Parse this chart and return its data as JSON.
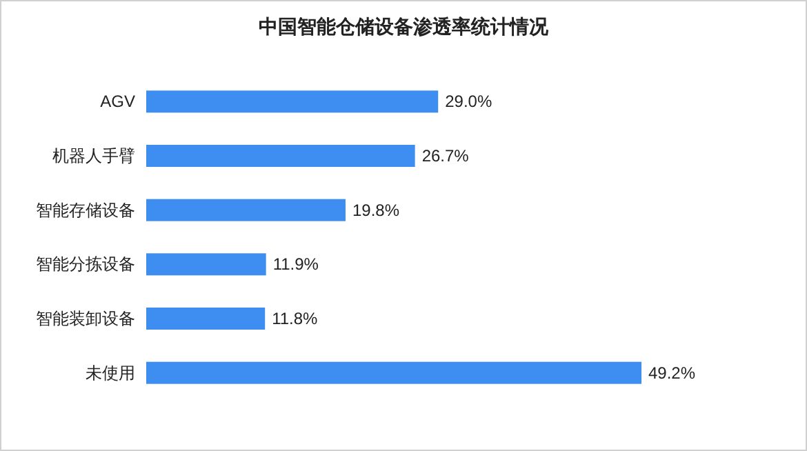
{
  "chart_data": {
    "type": "bar",
    "orientation": "horizontal",
    "title": "中国智能仓储设备渗透率统计情况",
    "categories": [
      "AGV",
      "机器人手臂",
      "智能存储设备",
      "智能分拣设备",
      "智能装卸设备",
      "未使用"
    ],
    "values": [
      29.0,
      26.7,
      19.8,
      11.9,
      11.8,
      49.2
    ],
    "value_labels": [
      "29.0%",
      "26.7%",
      "19.8%",
      "11.9%",
      "11.8%",
      "49.2%"
    ],
    "color": "#3d8ef0"
  }
}
